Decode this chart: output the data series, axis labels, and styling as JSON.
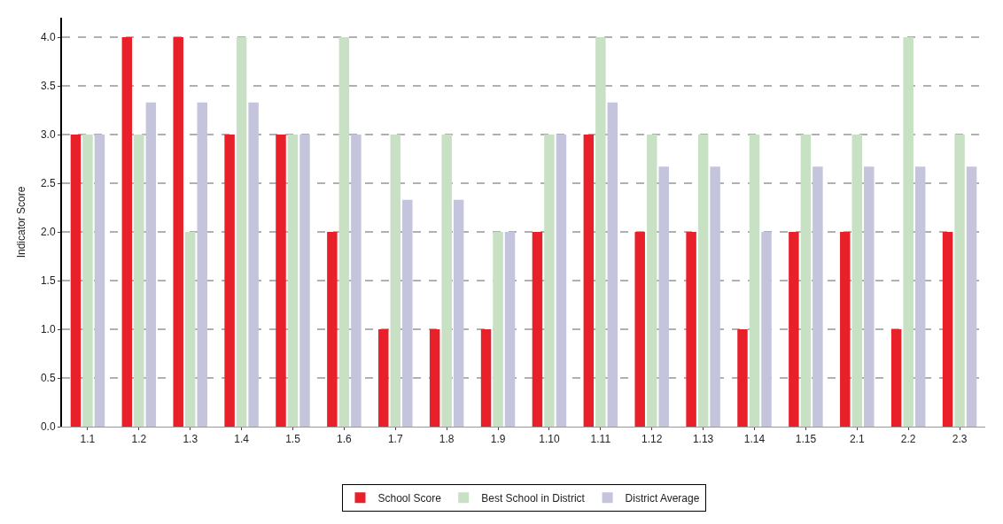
{
  "chart_data": {
    "type": "bar",
    "ylabel": "Indicator Score",
    "categories": [
      "1.1",
      "1.2",
      "1.3",
      "1.4",
      "1.5",
      "1.6",
      "1.7",
      "1.8",
      "1.9",
      "1.10",
      "1.11",
      "1.12",
      "1.13",
      "1.14",
      "1.15",
      "2.1",
      "2.2",
      "2.3"
    ],
    "series": [
      {
        "name": "School Score",
        "color": "#e8202a",
        "values": [
          3,
          4,
          4,
          3,
          3,
          2,
          1,
          1,
          1,
          2,
          3,
          2,
          2,
          1,
          2,
          2,
          1,
          2
        ]
      },
      {
        "name": "Best School in District",
        "color": "#c8e0c4",
        "values": [
          3,
          3,
          2,
          4,
          3,
          4,
          3,
          3,
          2,
          3,
          4,
          3,
          3,
          3,
          3,
          3,
          4,
          3
        ]
      },
      {
        "name": "District Average",
        "color": "#c4c4dc",
        "values": [
          3,
          3.33,
          3.33,
          3.33,
          3,
          3,
          2.33,
          2.33,
          2,
          3,
          3.33,
          2.67,
          2.67,
          2,
          2.67,
          2.67,
          2.67,
          2.67
        ]
      }
    ],
    "ylim": [
      0,
      4.2
    ],
    "yticks": [
      {
        "value": 0,
        "label": "0.0"
      },
      {
        "value": 0.5,
        "label": "0.5"
      },
      {
        "value": 1,
        "label": "1.0"
      },
      {
        "value": 1.5,
        "label": "1.5"
      },
      {
        "value": 2,
        "label": "2.0"
      },
      {
        "value": 2.5,
        "label": "2.5"
      },
      {
        "value": 3,
        "label": "3.0"
      },
      {
        "value": 3.5,
        "label": "3.5"
      },
      {
        "value": 4,
        "label": "4.0"
      }
    ],
    "grid": "y",
    "legend": "bottom"
  }
}
